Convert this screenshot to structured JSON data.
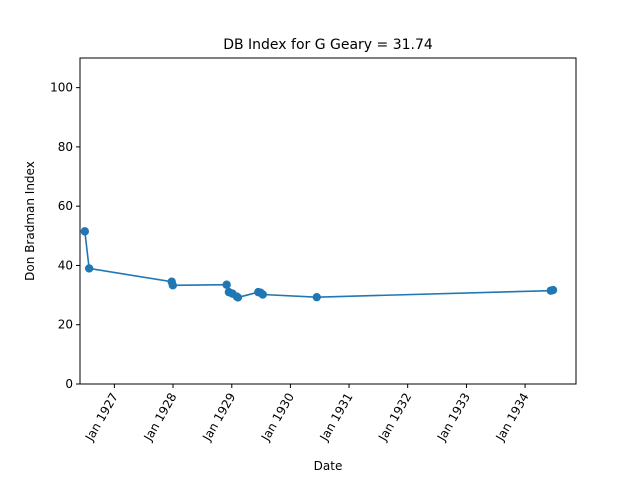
{
  "chart_data": {
    "type": "line",
    "title": "DB Index for G Geary = 31.74",
    "xlabel": "Date",
    "ylabel": "Don Bradman Index",
    "xlim": [
      "1926-06-01",
      "1934-11-14"
    ],
    "ylim": [
      0,
      110
    ],
    "yticks": [
      0,
      20,
      40,
      60,
      80,
      100
    ],
    "xticks": [
      {
        "date": "1927-01-01",
        "label": "Jan 1927"
      },
      {
        "date": "1928-01-01",
        "label": "Jan 1928"
      },
      {
        "date": "1929-01-01",
        "label": "Jan 1929"
      },
      {
        "date": "1930-01-01",
        "label": "Jan 1930"
      },
      {
        "date": "1931-01-01",
        "label": "Jan 1931"
      },
      {
        "date": "1932-01-01",
        "label": "Jan 1932"
      },
      {
        "date": "1933-01-01",
        "label": "Jan 1933"
      },
      {
        "date": "1934-01-01",
        "label": "Jan 1934"
      }
    ],
    "grid": false,
    "series": [
      {
        "color": "#1f77b4",
        "marker": "circle",
        "points": [
          {
            "x": "1926-07-01",
            "y": 51.5
          },
          {
            "x": "1926-07-28",
            "y": 39.0
          },
          {
            "x": "1927-12-24",
            "y": 34.5
          },
          {
            "x": "1927-12-31",
            "y": 33.3
          },
          {
            "x": "1928-11-30",
            "y": 33.5
          },
          {
            "x": "1928-12-14",
            "y": 31.0
          },
          {
            "x": "1929-01-05",
            "y": 30.5
          },
          {
            "x": "1929-02-01",
            "y": 29.5
          },
          {
            "x": "1929-02-08",
            "y": 29.2
          },
          {
            "x": "1929-06-15",
            "y": 31.0
          },
          {
            "x": "1929-06-29",
            "y": 30.8
          },
          {
            "x": "1929-07-13",
            "y": 30.2
          },
          {
            "x": "1930-06-14",
            "y": 29.3
          },
          {
            "x": "1934-06-10",
            "y": 31.5
          },
          {
            "x": "1934-06-24",
            "y": 31.7
          }
        ]
      }
    ]
  }
}
